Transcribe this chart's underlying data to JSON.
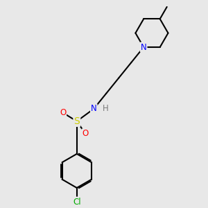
{
  "bg_color": "#e8e8e8",
  "bond_color": "#000000",
  "bond_width": 1.5,
  "atom_colors": {
    "N": "#0000ff",
    "S": "#cccc00",
    "O": "#ff0000",
    "Cl": "#00aa00",
    "C": "#000000",
    "H": "#7a7a7a"
  },
  "font_size": 8.5,
  "figsize": [
    3.0,
    3.0
  ],
  "dpi": 100
}
